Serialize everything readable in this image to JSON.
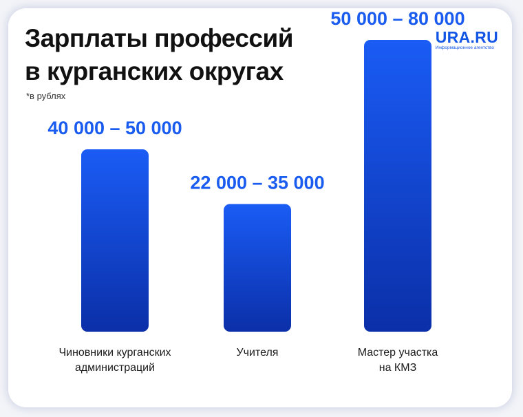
{
  "header": {
    "title_line1": "Зарплаты профессий",
    "title_line2": "в курганских округах",
    "subtitle": "*в рублях"
  },
  "logo": {
    "name": "URA.RU",
    "tagline": "Информационное агентство"
  },
  "colors": {
    "bar_top": "#1a5cf5",
    "bar_bottom": "#0b2fa8",
    "label": "#1a5cf0"
  },
  "chart_data": {
    "type": "bar",
    "title": "Зарплаты профессий в курганских округах",
    "unit": "*в рублях",
    "categories": [
      [
        "Чиновники курганских",
        "администраций"
      ],
      [
        "Учителя"
      ],
      [
        "Мастер участка",
        "на КМЗ"
      ]
    ],
    "ranges": [
      [
        40000,
        50000
      ],
      [
        22000,
        35000
      ],
      [
        50000,
        80000
      ]
    ],
    "range_labels": [
      "40 000 – 50 000",
      "22 000 – 35 000",
      "50 000 – 80 000"
    ],
    "ylim": [
      0,
      80000
    ],
    "grid": false,
    "legend": "none"
  }
}
